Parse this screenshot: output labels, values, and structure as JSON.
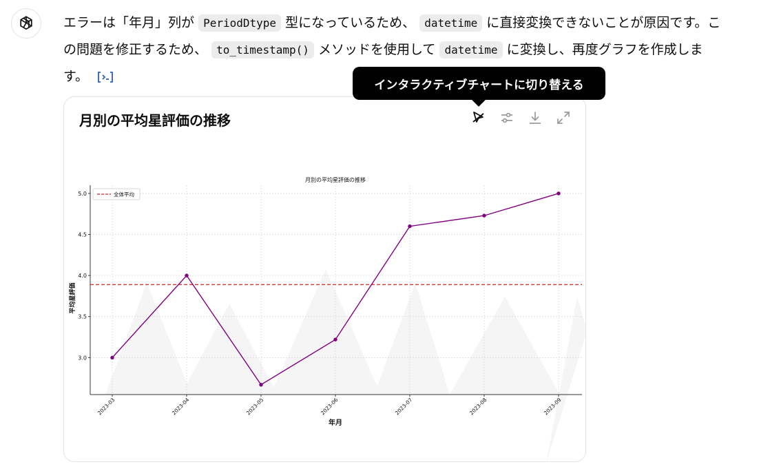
{
  "message": {
    "part1": "エラーは「年月」列が",
    "code1": "PeriodDtype",
    "part2": "型になっているため、",
    "code2": "datetime",
    "part3": "に直接変換できないことが原因です。この問題を修正するため、",
    "code3": "to_timestamp()",
    "part4": "メソッドを使用して",
    "code4": "datetime",
    "part5": "に変換し、再度グラフを作成します。"
  },
  "tooltip": {
    "text": "インタラクティブチャートに切り替える"
  },
  "card": {
    "title": "月別の平均星評価の推移",
    "icons": [
      "interactive-cursor-icon",
      "settings-sliders-icon",
      "download-icon",
      "expand-icon"
    ]
  },
  "chart_data": {
    "type": "line",
    "title": "月別の平均星評価の推移",
    "xlabel": "年月",
    "ylabel": "平均星評価",
    "categories": [
      "2023-03",
      "2023-04",
      "2023-05",
      "2023-06",
      "2023-07",
      "2023-08",
      "2023-09"
    ],
    "series": [
      {
        "values": [
          3.0,
          4.0,
          2.67,
          3.22,
          4.6,
          4.73,
          5.0
        ],
        "color": "#800080"
      }
    ],
    "reference_lines": [
      {
        "name": "全体平均",
        "value": 3.89,
        "color": "#e41a1c",
        "style": "dashed"
      }
    ],
    "yticks": [
      3.0,
      3.5,
      4.0,
      4.5,
      5.0
    ],
    "ylim": [
      2.55,
      5.1
    ],
    "grid": true,
    "legend": "top-left"
  }
}
